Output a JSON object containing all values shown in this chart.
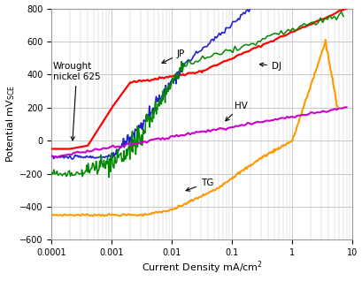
{
  "xlabel": "Current Density mA/cm²",
  "ylabel": "Potential mV$_{SCE}$",
  "ylim": [
    -600,
    800
  ],
  "yticks": [
    -600,
    -400,
    -200,
    0,
    200,
    400,
    600,
    800
  ],
  "xtick_labels": [
    "0.0001",
    "0.001",
    "0.01",
    "0.1",
    "1",
    "10"
  ],
  "background_color": "#ffffff",
  "grid_color": "#c8c8c8",
  "curves": {
    "wrought": {
      "color": "#ff0000"
    },
    "JP": {
      "color": "#2222cc"
    },
    "DJ": {
      "color": "#008800"
    },
    "HV": {
      "color": "#cc00cc"
    },
    "TG": {
      "color": "#ff9900"
    }
  }
}
